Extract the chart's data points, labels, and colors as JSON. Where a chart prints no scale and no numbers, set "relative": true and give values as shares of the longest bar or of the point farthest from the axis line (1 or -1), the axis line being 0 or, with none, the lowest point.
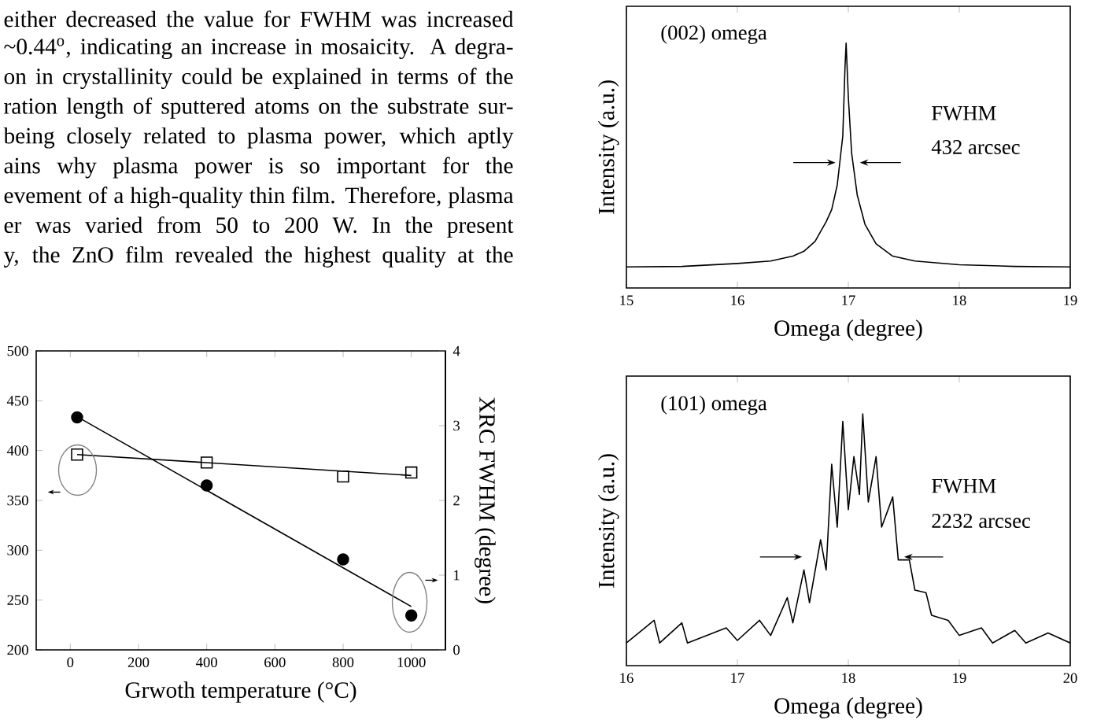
{
  "chart_data": [
    {
      "type": "other",
      "annotations": [
        "either decreased the value for FWHM was increased",
        "~0.44$^{o}$, indicating an increase in mosaicity. A degra-",
        "on in crystallinity could be explained in terms of the",
        "ration length of sputtered atoms on the substrate sur-",
        "being closely related to plasma power, which aptly",
        "ains why plasma power is so important for the",
        "evement of a high-quality thin film. Therefore, plasma",
        "er was varied from 50 to 200 W. In the present",
        "y, the ZnO film revealed the highest quality at the"
      ]
    },
    {
      "type": "scatter",
      "xlabel": "Grwoth temperature (°C)",
      "y2label": "XRC FWHM (degree)",
      "x": [
        20,
        400,
        800,
        1000
      ],
      "xlim": [
        -100,
        1100
      ],
      "xticks": [
        0,
        200,
        400,
        600,
        800,
        1000
      ],
      "ylim": [
        200,
        500
      ],
      "yticks": [
        200,
        250,
        300,
        350,
        400,
        450,
        500
      ],
      "y2lim": [
        0,
        4
      ],
      "y2ticks": [
        0,
        1,
        2,
        3,
        4
      ],
      "series": [
        {
          "type": "scatter",
          "color": "#000000",
          "marker": "square",
          "values": [
            396,
            388,
            374,
            378
          ]
        },
        {
          "type": "scatter",
          "color": "#000000",
          "marker": "circle",
          "axis": "y2",
          "values": [
            3.11,
            2.2,
            1.21,
            0.46
          ]
        },
        {
          "type": "line",
          "color": "#000000",
          "x": [
            20,
            1000
          ],
          "values": [
            396,
            375
          ]
        },
        {
          "type": "line",
          "color": "#000000",
          "axis": "y2",
          "x": [
            20,
            1000
          ],
          "values": [
            3.12,
            0.58
          ]
        }
      ]
    },
    {
      "type": "line",
      "relative": true,
      "xlabel": "Omega (degree)",
      "ylabel": "Intensity (a.u.)",
      "xlim": [
        15,
        19
      ],
      "xticks": [
        15,
        16,
        17,
        18,
        19
      ],
      "annotations": [
        "(002) omega",
        "FWHM",
        "432 arcsec"
      ],
      "series": [
        {
          "color": "#000000",
          "x": [
            15.0,
            15.5,
            16.0,
            16.3,
            16.5,
            16.6,
            16.7,
            16.8,
            16.85,
            16.9,
            16.95,
            16.97,
            16.98,
            17.0,
            17.03,
            17.08,
            17.15,
            17.25,
            17.4,
            17.6,
            18.0,
            18.5,
            19.0
          ],
          "values": [
            0.086,
            0.088,
            0.1,
            0.11,
            0.13,
            0.15,
            0.19,
            0.27,
            0.32,
            0.42,
            0.62,
            0.9,
            1.0,
            0.78,
            0.55,
            0.38,
            0.26,
            0.18,
            0.13,
            0.11,
            0.095,
            0.088,
            0.086
          ]
        }
      ]
    },
    {
      "type": "line",
      "relative": true,
      "xlabel": "Omega (degree)",
      "ylabel": "Intensity (a.u.)",
      "xlim": [
        16,
        20
      ],
      "xticks": [
        16,
        17,
        18,
        19,
        20
      ],
      "annotations": [
        "(101) omega",
        "FWHM",
        "2232 arcsec"
      ],
      "series": [
        {
          "color": "#000000",
          "x": [
            16.0,
            16.25,
            16.3,
            16.5,
            16.55,
            16.9,
            17.0,
            17.2,
            17.3,
            17.45,
            17.5,
            17.6,
            17.65,
            17.75,
            17.8,
            17.85,
            17.9,
            17.95,
            18.0,
            18.05,
            18.1,
            18.13,
            18.18,
            18.25,
            18.3,
            18.4,
            18.45,
            18.55,
            18.6,
            18.7,
            18.75,
            18.9,
            19.0,
            19.2,
            19.3,
            19.5,
            19.6,
            19.8,
            20.0
          ],
          "values": [
            0.09,
            0.18,
            0.09,
            0.17,
            0.09,
            0.15,
            0.1,
            0.18,
            0.12,
            0.27,
            0.17,
            0.38,
            0.25,
            0.5,
            0.38,
            0.8,
            0.55,
            0.97,
            0.62,
            0.83,
            0.68,
            1.0,
            0.65,
            0.83,
            0.55,
            0.67,
            0.42,
            0.42,
            0.3,
            0.29,
            0.2,
            0.18,
            0.12,
            0.15,
            0.09,
            0.14,
            0.09,
            0.13,
            0.09
          ]
        }
      ]
    }
  ]
}
